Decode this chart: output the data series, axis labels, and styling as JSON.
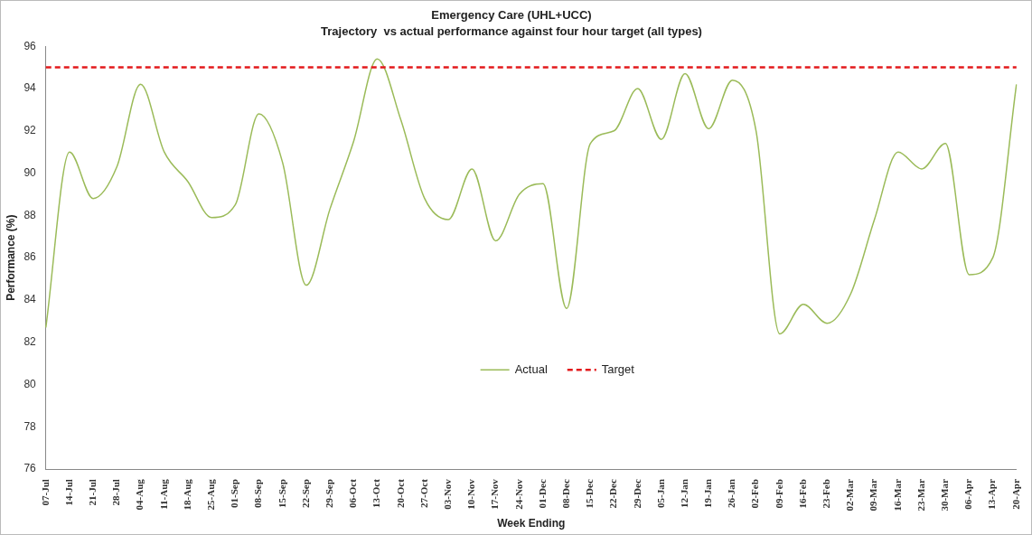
{
  "chart_data": {
    "type": "line",
    "title": "Emergency Care (UHL+UCC)",
    "subtitle": "Trajectory  vs actual performance against four hour target (all types)",
    "xlabel": "Week Ending",
    "ylabel": "Performance (%)",
    "categories": [
      "07-Jul",
      "14-Jul",
      "21-Jul",
      "28-Jul",
      "04-Aug",
      "11-Aug",
      "18-Aug",
      "25-Aug",
      "01-Sep",
      "08-Sep",
      "15-Sep",
      "22-Sep",
      "29-Sep",
      "06-Oct",
      "13-Oct",
      "20-Oct",
      "27-Oct",
      "03-Nov",
      "10-Nov",
      "17-Nov",
      "24-Nov",
      "01-Dec",
      "08-Dec",
      "15-Dec",
      "22-Dec",
      "29-Dec",
      "05-Jan",
      "12-Jan",
      "19-Jan",
      "26-Jan",
      "02-Feb",
      "09-Feb",
      "16-Feb",
      "23-Feb",
      "02-Mar",
      "09-Mar",
      "16-Mar",
      "23-Mar",
      "30-Mar",
      "06-Apr",
      "13-Apr",
      "20-Apr"
    ],
    "series": [
      {
        "name": "Actual",
        "color": "#9bbb59",
        "values": [
          82.7,
          91.0,
          88.8,
          90.3,
          94.2,
          91.0,
          89.6,
          87.9,
          88.5,
          92.8,
          90.5,
          84.7,
          88.3,
          91.5,
          95.4,
          92.5,
          88.8,
          87.8,
          90.2,
          86.8,
          89.0,
          89.5,
          83.6,
          91.4,
          92.0,
          94.0,
          91.6,
          94.7,
          92.1,
          94.4,
          92.0,
          82.4,
          83.8,
          82.9,
          84.3,
          87.8,
          91.0,
          90.2,
          91.4,
          85.2,
          86.0,
          94.2
        ]
      }
    ],
    "ref_lines": [
      {
        "axis": "y",
        "value": 95,
        "label": "Target",
        "color": "#e31a1c",
        "line_style": "dashed"
      }
    ],
    "ylim": [
      76,
      96
    ],
    "yticks": [
      76,
      78,
      80,
      82,
      84,
      86,
      88,
      90,
      92,
      94,
      96
    ],
    "grid": false,
    "legend": "bottom",
    "marker": "none"
  }
}
